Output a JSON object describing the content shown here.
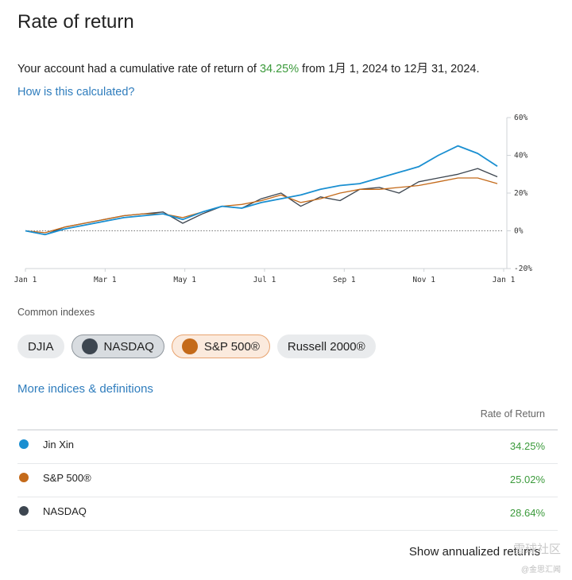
{
  "page": {
    "title": "Rate of return"
  },
  "summary": {
    "prefix": "Your account had a cumulative rate of return of ",
    "pct": "34.25%",
    "from": " from ",
    "start": "1月 1, 2024",
    "to": " to ",
    "end": "12月 31, 2024",
    "period": "."
  },
  "calc_link": "How is this calculated?",
  "chart_data": {
    "type": "line",
    "x_ticks": [
      "Jan 1",
      "Mar 1",
      "May 1",
      "Jul 1",
      "Sep 1",
      "Nov 1",
      "Jan 1"
    ],
    "y_ticks": [
      "60%",
      "40%",
      "20%",
      "0%",
      "-20%"
    ],
    "ylim": [
      -20,
      60
    ],
    "axis_side": "right",
    "zero_line": "dotted",
    "series": [
      {
        "name": "Jin Xin",
        "color": "#1a8fd1",
        "values": [
          0,
          -2,
          1,
          3,
          5,
          7,
          8,
          9,
          6,
          10,
          13,
          12,
          15,
          17,
          19,
          22,
          24,
          25,
          28,
          31,
          34,
          40,
          45,
          41,
          34.25
        ]
      },
      {
        "name": "S&P 500®",
        "color": "#c46a1a",
        "values": [
          0,
          -1,
          2,
          4,
          6,
          8,
          9,
          9,
          7,
          10,
          13,
          14,
          16,
          19,
          15,
          17,
          20,
          22,
          22,
          23,
          24,
          26,
          28,
          28,
          25.02
        ]
      },
      {
        "name": "NASDAQ",
        "color": "#3d4650",
        "values": [
          0,
          -2,
          2,
          4,
          6,
          8,
          9,
          10,
          4,
          9,
          13,
          12,
          17,
          20,
          13,
          18,
          16,
          22,
          23,
          20,
          26,
          28,
          30,
          33,
          28.64
        ]
      }
    ]
  },
  "indexes": {
    "label": "Common indexes",
    "chips": [
      {
        "label": "DJIA"
      },
      {
        "label": "NASDAQ",
        "color": "#3d4650"
      },
      {
        "label": "S&P 500®",
        "color": "#c46a1a"
      },
      {
        "label": "Russell 2000®"
      }
    ]
  },
  "more_link": "More indices & definitions",
  "table": {
    "header": "Rate of Return",
    "rows": [
      {
        "name": "Jin Xin",
        "value": "34.25%",
        "color": "#1a8fd1"
      },
      {
        "name": "S&P 500®",
        "value": "25.02%",
        "color": "#c46a1a"
      },
      {
        "name": "NASDAQ",
        "value": "28.64%",
        "color": "#3d4650"
      }
    ]
  },
  "annualized": "Show annualized returns",
  "watermark": {
    "line1": "雪球社区",
    "line2": "@金思汇闻"
  }
}
